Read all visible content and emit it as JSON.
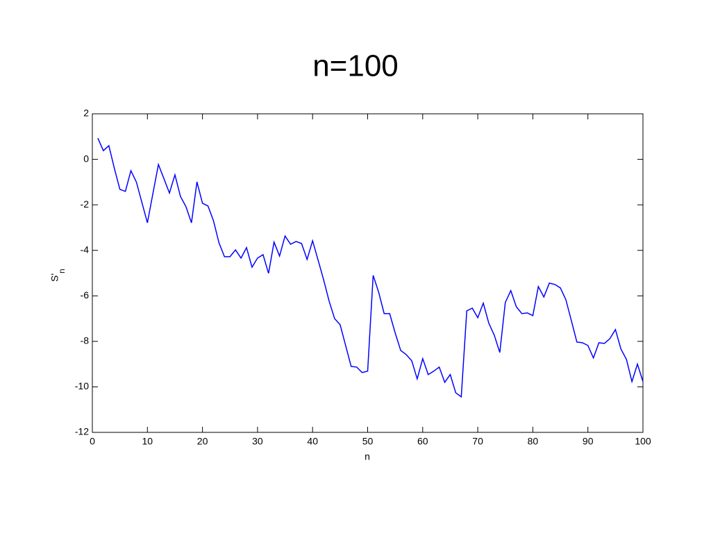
{
  "chart_data": {
    "type": "line",
    "title": "n=100",
    "xlabel": "n",
    "ylabel": {
      "text": "S'",
      "subscript": "n"
    },
    "x": [
      1,
      2,
      3,
      4,
      5,
      6,
      7,
      8,
      9,
      10,
      11,
      12,
      13,
      14,
      15,
      16,
      17,
      18,
      19,
      20,
      21,
      22,
      23,
      24,
      25,
      26,
      27,
      28,
      29,
      30,
      31,
      32,
      33,
      34,
      35,
      36,
      37,
      38,
      39,
      40,
      41,
      42,
      43,
      44,
      45,
      46,
      47,
      48,
      49,
      50,
      51,
      52,
      53,
      54,
      55,
      56,
      57,
      58,
      59,
      60,
      61,
      62,
      63,
      64,
      65,
      66,
      67,
      68,
      69,
      70,
      71,
      72,
      73,
      74,
      75,
      76,
      77,
      78,
      79,
      80,
      81,
      82,
      83,
      84,
      85,
      86,
      87,
      88,
      89,
      90,
      91,
      92,
      93,
      94,
      95,
      96,
      97,
      98,
      99,
      100
    ],
    "series": [
      {
        "color": "#0000ff",
        "values": [
          0.93,
          0.38,
          0.6,
          -0.4,
          -1.32,
          -1.41,
          -0.5,
          -1.0,
          -1.9,
          -2.79,
          -1.5,
          -0.23,
          -0.85,
          -1.48,
          -0.68,
          -1.63,
          -2.08,
          -2.79,
          -0.99,
          -1.93,
          -2.05,
          -2.7,
          -3.67,
          -4.28,
          -4.28,
          -3.98,
          -4.34,
          -3.88,
          -4.74,
          -4.34,
          -4.19,
          -5.01,
          -3.64,
          -4.25,
          -3.37,
          -3.73,
          -3.61,
          -3.7,
          -4.4,
          -3.58,
          -4.43,
          -5.29,
          -6.23,
          -7.0,
          -7.27,
          -8.18,
          -9.1,
          -9.13,
          -9.37,
          -9.31,
          -5.1,
          -5.84,
          -6.78,
          -6.78,
          -7.63,
          -8.4,
          -8.58,
          -8.85,
          -9.65,
          -8.76,
          -9.46,
          -9.31,
          -9.13,
          -9.8,
          -9.46,
          -10.26,
          -10.44,
          -6.66,
          -6.54,
          -6.96,
          -6.32,
          -7.2,
          -7.73,
          -8.49,
          -6.29,
          -5.77,
          -6.48,
          -6.78,
          -6.75,
          -6.87,
          -5.59,
          -6.05,
          -5.44,
          -5.5,
          -5.65,
          -6.17,
          -7.09,
          -8.03,
          -8.06,
          -8.18,
          -8.73,
          -8.06,
          -8.09,
          -7.88,
          -7.48,
          -8.34,
          -8.79,
          -9.77,
          -9.0,
          -9.77
        ]
      }
    ],
    "xlim": [
      0,
      100
    ],
    "xticks": [
      0,
      10,
      20,
      30,
      40,
      50,
      60,
      70,
      80,
      90,
      100
    ],
    "ylim": [
      -12,
      2
    ],
    "yticks": [
      -12,
      -10,
      -8,
      -6,
      -4,
      -2,
      0,
      2
    ],
    "grid": false
  }
}
